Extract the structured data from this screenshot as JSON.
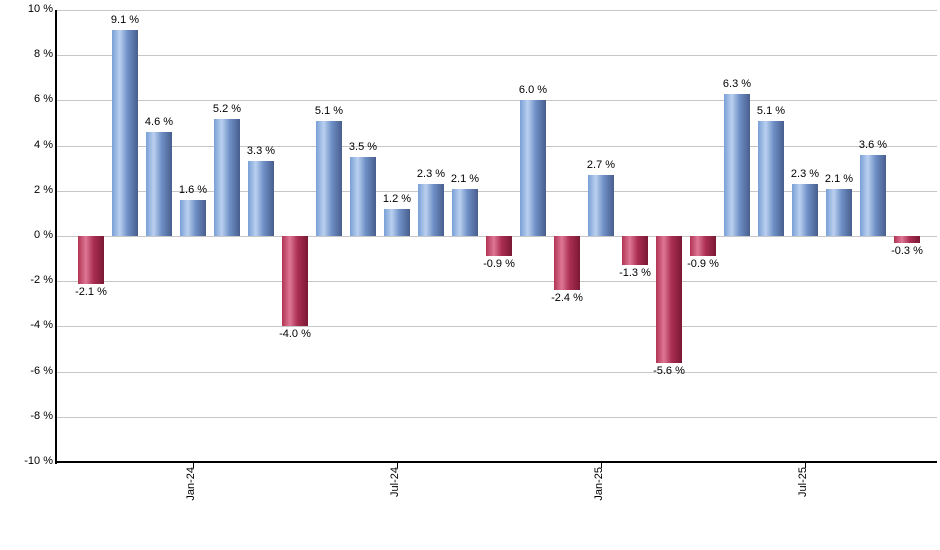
{
  "chart_data": {
    "type": "bar",
    "title": "",
    "values": [
      -2.1,
      9.1,
      4.6,
      1.6,
      5.2,
      3.3,
      -4.0,
      5.1,
      3.5,
      1.2,
      2.3,
      2.1,
      -0.9,
      6.0,
      -2.4,
      2.7,
      -1.3,
      -5.6,
      -0.9,
      6.3,
      5.1,
      2.3,
      2.1,
      3.6,
      -0.3
    ],
    "bar_labels": [
      "-2.1 %",
      "9.1 %",
      "4.6 %",
      "1.6 %",
      "5.2 %",
      "3.3 %",
      "-4.0 %",
      "5.1 %",
      "3.5 %",
      "1.2 %",
      "2.3 %",
      "2.1 %",
      "-0.9 %",
      "6.0 %",
      "-2.4 %",
      "2.7 %",
      "-1.3 %",
      "-5.6 %",
      "-0.9 %",
      "6.3 %",
      "5.1 %",
      "2.3 %",
      "2.1 %",
      "3.6 %",
      "-0.3 %"
    ],
    "y_ticks": [
      "10 %",
      "8 %",
      "6 %",
      "4 %",
      "2 %",
      "0 %",
      "-2 %",
      "-4 %",
      "-6 %",
      "-8 %",
      "-10 %"
    ],
    "x_ticks": [
      {
        "index": 3,
        "label": "Jan-24"
      },
      {
        "index": 9,
        "label": "Jul-24"
      },
      {
        "index": 15,
        "label": "Jan-25"
      },
      {
        "index": 21,
        "label": "Jul-25"
      }
    ],
    "ylim": [
      -10,
      10
    ],
    "grid": true,
    "legend": "none",
    "colors": {
      "positive": "#88a9dc",
      "negative": "#c03358",
      "positive_gradient": [
        "#7aa0d6",
        "#bad0f0",
        "#6f90c6",
        "#475e8d"
      ],
      "negative_gradient": [
        "#b23354",
        "#de7795",
        "#ab2e52",
        "#7a1834"
      ],
      "grid": "#c6c6c6",
      "axis": "#000000",
      "text": "#000000",
      "background": "#ffffff"
    }
  }
}
